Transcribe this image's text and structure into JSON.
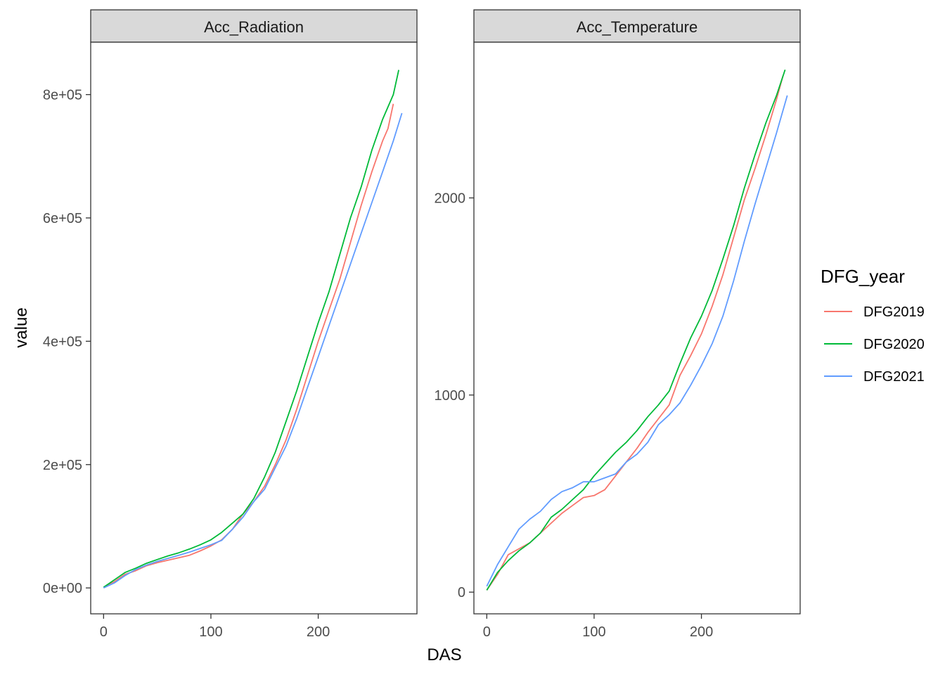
{
  "chart_data": {
    "type": "line",
    "xlabel": "DAS",
    "ylabel": "value",
    "legend": {
      "title": "DFG_year",
      "position": "right",
      "entries": [
        {
          "label": "DFG2019",
          "color": "#F8766D"
        },
        {
          "label": "DFG2020",
          "color": "#00BA38"
        },
        {
          "label": "DFG2021",
          "color": "#619CFF"
        }
      ]
    },
    "facets": [
      {
        "strip": "Acc_Radiation",
        "xlim": [
          -12,
          292
        ],
        "ylim": [
          -42000,
          885000
        ],
        "x_ticks": [
          0,
          100,
          200
        ],
        "x_tick_labels": [
          "0",
          "100",
          "200"
        ],
        "y_ticks": [
          0,
          200000,
          400000,
          600000,
          800000
        ],
        "y_tick_labels": [
          "0e+00",
          "2e+05",
          "4e+05",
          "6e+05",
          "8e+05"
        ],
        "series": [
          {
            "name": "DFG2019",
            "points": [
              [
                0,
                1000
              ],
              [
                10,
                10000
              ],
              [
                20,
                22000
              ],
              [
                30,
                28000
              ],
              [
                40,
                36000
              ],
              [
                50,
                41000
              ],
              [
                60,
                45000
              ],
              [
                70,
                49000
              ],
              [
                80,
                53000
              ],
              [
                90,
                60000
              ],
              [
                100,
                68000
              ],
              [
                110,
                78000
              ],
              [
                120,
                95000
              ],
              [
                130,
                120000
              ],
              [
                140,
                140000
              ],
              [
                150,
                165000
              ],
              [
                160,
                200000
              ],
              [
                170,
                240000
              ],
              [
                180,
                290000
              ],
              [
                190,
                345000
              ],
              [
                200,
                400000
              ],
              [
                210,
                450000
              ],
              [
                220,
                500000
              ],
              [
                230,
                560000
              ],
              [
                240,
                620000
              ],
              [
                250,
                675000
              ],
              [
                260,
                725000
              ],
              [
                265,
                745000
              ],
              [
                270,
                785000
              ]
            ]
          },
          {
            "name": "DFG2020",
            "points": [
              [
                0,
                1000
              ],
              [
                10,
                13000
              ],
              [
                20,
                25000
              ],
              [
                30,
                32000
              ],
              [
                40,
                40000
              ],
              [
                50,
                46000
              ],
              [
                60,
                52000
              ],
              [
                70,
                57000
              ],
              [
                80,
                63000
              ],
              [
                90,
                70000
              ],
              [
                100,
                78000
              ],
              [
                110,
                90000
              ],
              [
                120,
                105000
              ],
              [
                130,
                120000
              ],
              [
                140,
                145000
              ],
              [
                150,
                180000
              ],
              [
                160,
                220000
              ],
              [
                170,
                270000
              ],
              [
                180,
                320000
              ],
              [
                190,
                375000
              ],
              [
                200,
                430000
              ],
              [
                210,
                480000
              ],
              [
                220,
                540000
              ],
              [
                230,
                600000
              ],
              [
                240,
                650000
              ],
              [
                250,
                710000
              ],
              [
                260,
                760000
              ],
              [
                270,
                800000
              ],
              [
                275,
                840000
              ]
            ]
          },
          {
            "name": "DFG2021",
            "points": [
              [
                0,
                0
              ],
              [
                10,
                8000
              ],
              [
                20,
                20000
              ],
              [
                30,
                30000
              ],
              [
                40,
                37000
              ],
              [
                50,
                43000
              ],
              [
                60,
                48000
              ],
              [
                70,
                53000
              ],
              [
                80,
                58000
              ],
              [
                90,
                64000
              ],
              [
                100,
                70000
              ],
              [
                110,
                77000
              ],
              [
                120,
                95000
              ],
              [
                130,
                115000
              ],
              [
                140,
                140000
              ],
              [
                150,
                160000
              ],
              [
                160,
                195000
              ],
              [
                170,
                230000
              ],
              [
                180,
                275000
              ],
              [
                190,
                325000
              ],
              [
                200,
                375000
              ],
              [
                210,
                425000
              ],
              [
                220,
                475000
              ],
              [
                230,
                525000
              ],
              [
                240,
                575000
              ],
              [
                250,
                625000
              ],
              [
                260,
                675000
              ],
              [
                270,
                725000
              ],
              [
                278,
                770000
              ]
            ]
          }
        ]
      },
      {
        "strip": "Acc_Temperature",
        "xlim": [
          -12,
          292
        ],
        "ylim": [
          -110,
          2790
        ],
        "x_ticks": [
          0,
          100,
          200
        ],
        "x_tick_labels": [
          "0",
          "100",
          "200"
        ],
        "y_ticks": [
          0,
          1000,
          2000
        ],
        "y_tick_labels": [
          "0",
          "1000",
          "2000"
        ],
        "series": [
          {
            "name": "DFG2019",
            "points": [
              [
                0,
                10
              ],
              [
                10,
                90
              ],
              [
                20,
                190
              ],
              [
                30,
                220
              ],
              [
                40,
                250
              ],
              [
                50,
                300
              ],
              [
                60,
                350
              ],
              [
                70,
                400
              ],
              [
                80,
                440
              ],
              [
                90,
                480
              ],
              [
                100,
                490
              ],
              [
                110,
                520
              ],
              [
                120,
                590
              ],
              [
                130,
                660
              ],
              [
                140,
                730
              ],
              [
                150,
                810
              ],
              [
                160,
                880
              ],
              [
                170,
                950
              ],
              [
                180,
                1100
              ],
              [
                190,
                1200
              ],
              [
                200,
                1310
              ],
              [
                210,
                1450
              ],
              [
                220,
                1610
              ],
              [
                230,
                1800
              ],
              [
                240,
                1990
              ],
              [
                250,
                2150
              ],
              [
                260,
                2320
              ],
              [
                270,
                2500
              ],
              [
                276,
                2620
              ]
            ]
          },
          {
            "name": "DFG2020",
            "points": [
              [
                0,
                10
              ],
              [
                10,
                100
              ],
              [
                20,
                160
              ],
              [
                30,
                210
              ],
              [
                40,
                250
              ],
              [
                50,
                300
              ],
              [
                60,
                380
              ],
              [
                70,
                420
              ],
              [
                80,
                470
              ],
              [
                90,
                520
              ],
              [
                100,
                590
              ],
              [
                110,
                650
              ],
              [
                120,
                710
              ],
              [
                130,
                760
              ],
              [
                140,
                820
              ],
              [
                150,
                890
              ],
              [
                160,
                950
              ],
              [
                170,
                1020
              ],
              [
                180,
                1160
              ],
              [
                190,
                1290
              ],
              [
                200,
                1400
              ],
              [
                210,
                1530
              ],
              [
                220,
                1690
              ],
              [
                230,
                1860
              ],
              [
                240,
                2050
              ],
              [
                250,
                2220
              ],
              [
                260,
                2380
              ],
              [
                270,
                2520
              ],
              [
                278,
                2650
              ]
            ]
          },
          {
            "name": "DFG2021",
            "points": [
              [
                0,
                30
              ],
              [
                10,
                140
              ],
              [
                20,
                230
              ],
              [
                30,
                320
              ],
              [
                40,
                370
              ],
              [
                50,
                410
              ],
              [
                60,
                470
              ],
              [
                70,
                510
              ],
              [
                80,
                530
              ],
              [
                90,
                560
              ],
              [
                100,
                560
              ],
              [
                110,
                580
              ],
              [
                120,
                600
              ],
              [
                130,
                660
              ],
              [
                140,
                700
              ],
              [
                150,
                760
              ],
              [
                160,
                850
              ],
              [
                170,
                900
              ],
              [
                180,
                960
              ],
              [
                190,
                1050
              ],
              [
                200,
                1150
              ],
              [
                210,
                1260
              ],
              [
                220,
                1400
              ],
              [
                230,
                1580
              ],
              [
                240,
                1780
              ],
              [
                250,
                1970
              ],
              [
                260,
                2150
              ],
              [
                270,
                2330
              ],
              [
                280,
                2520
              ]
            ]
          }
        ]
      }
    ]
  }
}
